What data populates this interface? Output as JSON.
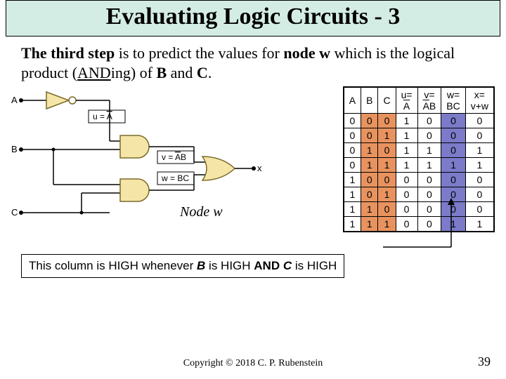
{
  "title": "Evaluating Logic Circuits - 3",
  "body": {
    "pre": "The third step",
    "mid1": " is to predict the values for ",
    "nodew": "node w",
    "mid2": " which is the logical product (",
    "anding": "AND",
    "mid3": "ing) of ",
    "b": "B",
    "and": " and ",
    "c": "C",
    "end": "."
  },
  "circuit": {
    "inputs": {
      "A": "A",
      "B": "B",
      "C": "C"
    },
    "u_eq": "u = ",
    "u_val": "A",
    "v_eq": "v = ",
    "v_a": "A",
    "v_b": "B",
    "w_eq": "w = BC",
    "out": "x",
    "node_label": "Node w",
    "colors": {
      "gate_fill": "#f5e6a8",
      "gate_stroke": "#7a6a2a",
      "wire": "#000000",
      "dot": "#000000"
    }
  },
  "table": {
    "headers": {
      "A": "A",
      "B": "B",
      "C": "C",
      "u_pre": "u=",
      "u_over": "A",
      "v_pre": "v=",
      "v_over": "A",
      "v_post": "B",
      "w_pre": "w=",
      "w_post": "BC",
      "x_pre": "x=",
      "x_post": "v+w"
    },
    "rows": [
      [
        "0",
        "0",
        "0",
        "1",
        "0",
        "0",
        "0"
      ],
      [
        "0",
        "0",
        "1",
        "1",
        "0",
        "0",
        "0"
      ],
      [
        "0",
        "1",
        "0",
        "1",
        "1",
        "0",
        "1"
      ],
      [
        "0",
        "1",
        "1",
        "1",
        "1",
        "1",
        "1"
      ],
      [
        "1",
        "0",
        "0",
        "0",
        "0",
        "0",
        "0"
      ],
      [
        "1",
        "0",
        "1",
        "0",
        "0",
        "0",
        "0"
      ],
      [
        "1",
        "1",
        "0",
        "0",
        "0",
        "0",
        "0"
      ],
      [
        "1",
        "1",
        "1",
        "0",
        "0",
        "1",
        "1"
      ]
    ],
    "highlight": {
      "b_col": "#e8935f",
      "c_col": "#e8935f",
      "w_col": "#7b7bc9"
    }
  },
  "caption": {
    "t1": "This column is HIGH whenever ",
    "b": "B",
    "t2": " is HIGH ",
    "and": "AND ",
    "c": "C",
    "t3": " is HIGH"
  },
  "footer": {
    "copyright": "Copyright © 2018 C. P. Rubenstein",
    "page": "39"
  }
}
